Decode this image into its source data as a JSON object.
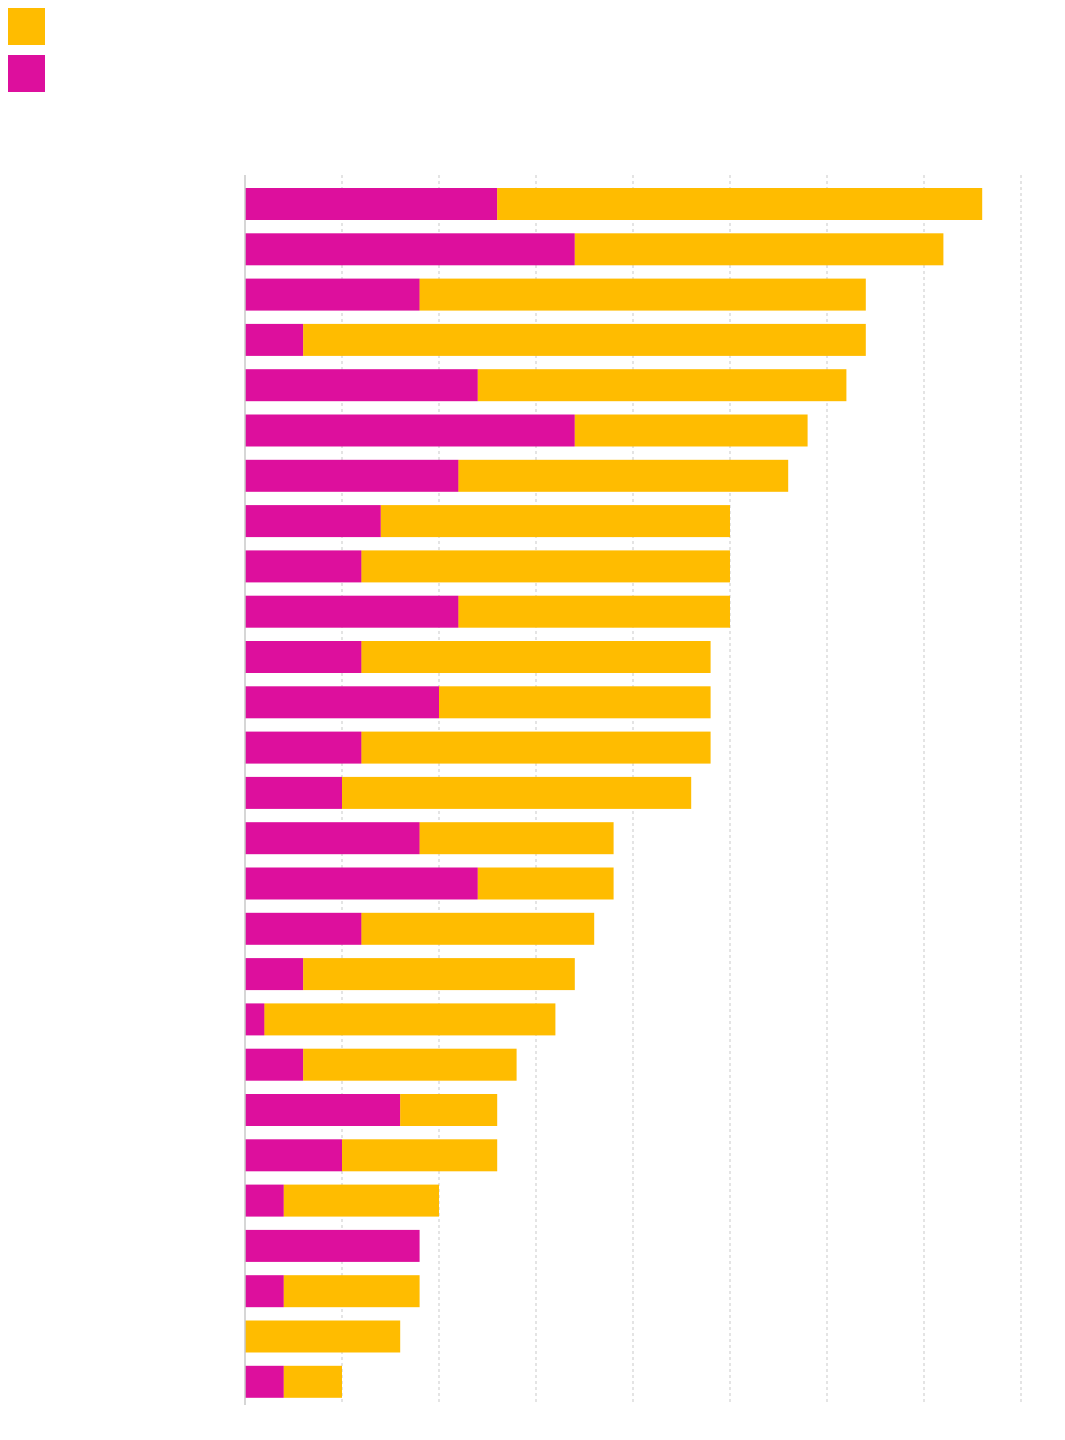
{
  "colors": {
    "series_a": "#FFBC00",
    "series_b": "#DD0F9D",
    "grid": "#C8C8C8",
    "axis": "#C8C8C8"
  },
  "chart_data": {
    "type": "bar",
    "orientation": "horizontal",
    "stacked": true,
    "title": "",
    "xlabel": "",
    "ylabel": "",
    "xlim": [
      0,
      40
    ],
    "grid": true,
    "legend": "top-left",
    "series": [
      {
        "name": "",
        "color": "#DD0F9D",
        "values": [
          13,
          17,
          9,
          3,
          12,
          17,
          11,
          7,
          6,
          11,
          6,
          10,
          6,
          5,
          9,
          12,
          6,
          3,
          1,
          3,
          8,
          5,
          2,
          9,
          2,
          0,
          2
        ]
      },
      {
        "name": "",
        "color": "#FFBC00",
        "values": [
          25,
          19,
          23,
          29,
          19,
          12,
          17,
          18,
          19,
          14,
          18,
          14,
          18,
          18,
          10,
          7,
          12,
          14,
          15,
          11,
          5,
          8,
          8,
          0,
          7,
          8,
          3
        ]
      }
    ]
  }
}
